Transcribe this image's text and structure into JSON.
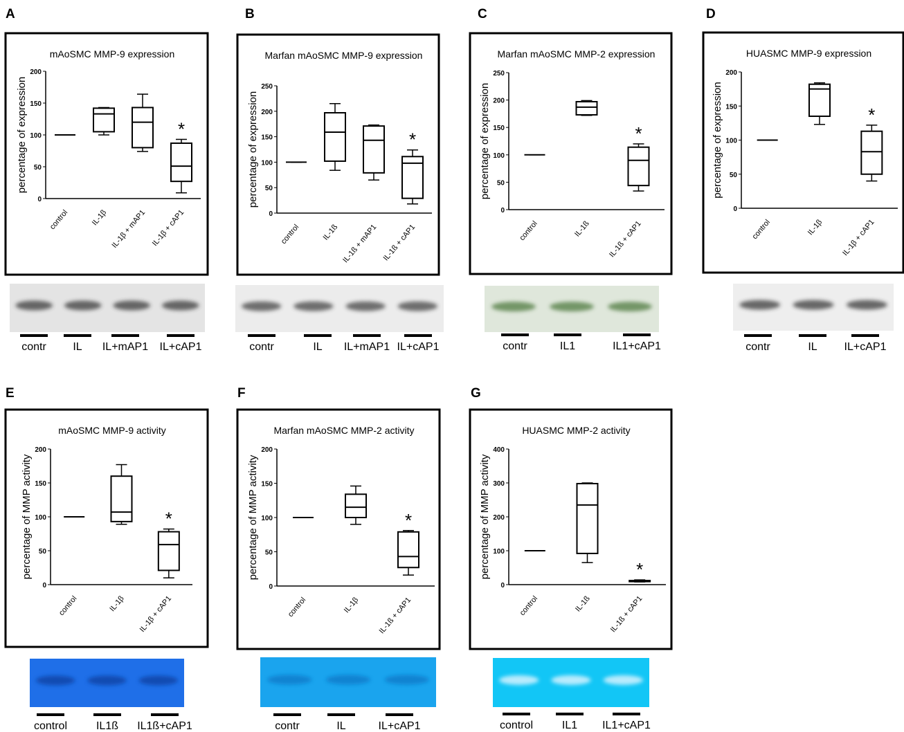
{
  "chart_data": [
    {
      "type": "box",
      "panel": "A",
      "title": "mAoSMC MMP-9 expression",
      "y_label": "percentage of expression",
      "categories": [
        "control",
        "IL-1β",
        "IL-1β + mAP1",
        "IL-1β + cAP1"
      ],
      "boxes": [
        {
          "min": 100,
          "q1": 100,
          "median": 100,
          "q3": 100,
          "max": 100
        },
        {
          "min": 100,
          "q1": 105,
          "median": 133,
          "q3": 142,
          "max": 143
        },
        {
          "min": 74,
          "q1": 80,
          "median": 120,
          "q3": 143,
          "max": 164
        },
        {
          "min": 9,
          "q1": 27,
          "median": 51,
          "q3": 87,
          "max": 93
        }
      ],
      "ylim": [
        0,
        200
      ],
      "yticks": [
        0,
        50,
        100,
        150,
        200
      ],
      "annotation": "*",
      "lane_labels": [
        "contr",
        "IL",
        "IL+mAP1",
        "IL+cAP1"
      ]
    },
    {
      "type": "box",
      "panel": "B",
      "title": "Marfan mAoSMC MMP-9 expression",
      "y_label": "percentage of expression",
      "categories": [
        "control",
        "IL-1ß",
        "IL-1ß + mAP1",
        "IL-1ß + cAP1"
      ],
      "boxes": [
        {
          "min": 100,
          "q1": 100,
          "median": 100,
          "q3": 100,
          "max": 100
        },
        {
          "min": 84,
          "q1": 102,
          "median": 159,
          "q3": 197,
          "max": 215
        },
        {
          "min": 65,
          "q1": 79,
          "median": 143,
          "q3": 171,
          "max": 173
        },
        {
          "min": 18,
          "q1": 29,
          "median": 98,
          "q3": 111,
          "max": 124
        }
      ],
      "ylim": [
        0,
        250
      ],
      "yticks": [
        0,
        50,
        100,
        150,
        200,
        250
      ],
      "annotation": "*",
      "lane_labels": [
        "contr",
        "IL",
        "IL+mAP1",
        "IL+cAP1"
      ]
    },
    {
      "type": "box",
      "panel": "C",
      "title": "Marfan mAoSMC MMP-2 expression",
      "y_label": "percentage of expression",
      "categories": [
        "control",
        "IL-1ß",
        "IL-1ß + cAP1"
      ],
      "boxes": [
        {
          "min": 100,
          "q1": 100,
          "median": 100,
          "q3": 100,
          "max": 100
        },
        {
          "min": 172,
          "q1": 173,
          "median": 187,
          "q3": 197,
          "max": 199
        },
        {
          "min": 34,
          "q1": 44,
          "median": 90,
          "q3": 114,
          "max": 120
        }
      ],
      "ylim": [
        0,
        250
      ],
      "yticks": [
        0,
        50,
        100,
        150,
        200,
        250
      ],
      "annotation": "*",
      "lane_labels": [
        "contr",
        "IL1",
        "IL1+cAP1"
      ]
    },
    {
      "type": "box",
      "panel": "D",
      "title": "HUASMC MMP-9 expression",
      "y_label": "percentage of expression",
      "categories": [
        "control",
        "IL-1β",
        "IL-1β + cAP1"
      ],
      "boxes": [
        {
          "min": 100,
          "q1": 100,
          "median": 100,
          "q3": 100,
          "max": 100
        },
        {
          "min": 123,
          "q1": 135,
          "median": 175,
          "q3": 182,
          "max": 184
        },
        {
          "min": 40,
          "q1": 50,
          "median": 83,
          "q3": 113,
          "max": 122
        }
      ],
      "ylim": [
        0,
        200
      ],
      "yticks": [
        0,
        50,
        100,
        150,
        200
      ],
      "annotation": "*",
      "lane_labels": [
        "contr",
        "IL",
        "IL+cAP1"
      ]
    },
    {
      "type": "box",
      "panel": "E",
      "title": "mAoSMC MMP-9 activity",
      "y_label": "percentage of MMP activity",
      "categories": [
        "control",
        "IL-1β",
        "IL-1β + cAP1"
      ],
      "boxes": [
        {
          "min": 100,
          "q1": 100,
          "median": 100,
          "q3": 100,
          "max": 100
        },
        {
          "min": 89,
          "q1": 93,
          "median": 107,
          "q3": 160,
          "max": 177
        },
        {
          "min": 10,
          "q1": 21,
          "median": 59,
          "q3": 78,
          "max": 82
        }
      ],
      "ylim": [
        0,
        200
      ],
      "yticks": [
        0,
        50,
        100,
        150,
        200
      ],
      "annotation": "*",
      "lane_labels": [
        "control",
        "IL1ß",
        "IL1ß+cAP1"
      ]
    },
    {
      "type": "box",
      "panel": "F",
      "title": "Marfan mAoSMC MMP-2 activity",
      "y_label": "percentage of MMP activity",
      "categories": [
        "control",
        "IL-1β",
        "IL-1ß + cAP1"
      ],
      "boxes": [
        {
          "min": 100,
          "q1": 100,
          "median": 100,
          "q3": 100,
          "max": 100
        },
        {
          "min": 90,
          "q1": 100,
          "median": 115,
          "q3": 134,
          "max": 146
        },
        {
          "min": 16,
          "q1": 27,
          "median": 43,
          "q3": 79,
          "max": 81
        }
      ],
      "ylim": [
        0,
        200
      ],
      "yticks": [
        0,
        50,
        100,
        150,
        200
      ],
      "annotation": "*",
      "lane_labels": [
        "contr",
        "IL",
        "IL+cAP1"
      ]
    },
    {
      "type": "box",
      "panel": "G",
      "title": "HUASMC MMP-2 activity",
      "y_label": "percentage of MMP activity",
      "categories": [
        "control",
        "IL-1ß",
        "IL-1ß + cAP1"
      ],
      "boxes": [
        {
          "min": 100,
          "q1": 100,
          "median": 100,
          "q3": 100,
          "max": 100
        },
        {
          "min": 65,
          "q1": 92,
          "median": 235,
          "q3": 298,
          "max": 300
        },
        {
          "min": 8,
          "q1": 9,
          "median": 10,
          "q3": 12,
          "max": 14
        }
      ],
      "ylim": [
        0,
        400
      ],
      "yticks": [
        0,
        100,
        200,
        300,
        400
      ],
      "annotation": "*",
      "lane_labels": [
        "control",
        "IL1",
        "IL1+cAP1"
      ]
    }
  ]
}
